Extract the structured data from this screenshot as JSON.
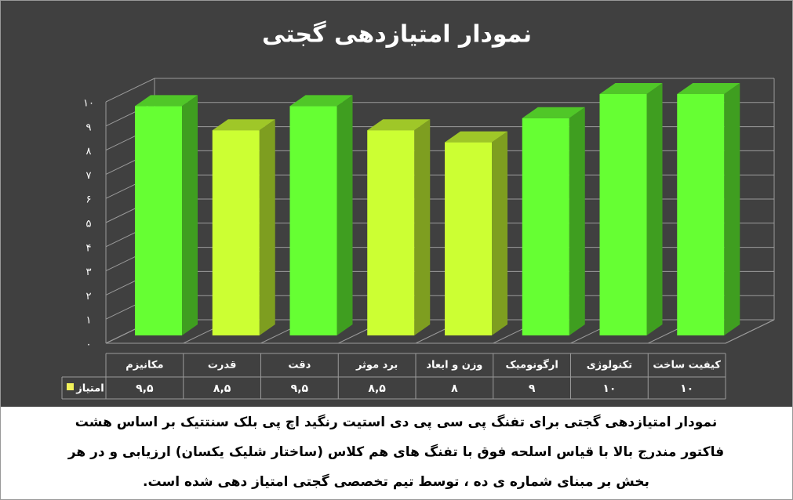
{
  "chart_data": {
    "type": "bar3d",
    "title": "نمودار امتیازدهی گجتی",
    "categories": [
      "مکانیزم",
      "قدرت",
      "دقت",
      "برد موثر",
      "وزن و ابعاد",
      "ارگونومیک",
      "تکنولوژی",
      "کیفیت ساخت"
    ],
    "series": [
      {
        "name": "امتیاز",
        "color": "#f2f25a",
        "values": [
          9.5,
          8.5,
          9.5,
          8.5,
          8,
          9,
          10,
          10
        ],
        "value_labels": [
          "۹,۵",
          "۸,۵",
          "۹,۵",
          "۸,۵",
          "۸",
          "۹",
          "۱۰",
          "۱۰"
        ],
        "bar_colors": [
          "#66ff33",
          "#ccff33",
          "#66ff33",
          "#ccff33",
          "#ccff33",
          "#66ff33",
          "#66ff33",
          "#66ff33"
        ]
      }
    ],
    "ylim": [
      0,
      10
    ],
    "yticks": [
      {
        "value": 0,
        "label": "۰"
      },
      {
        "value": 1,
        "label": "۱"
      },
      {
        "value": 2,
        "label": "۲"
      },
      {
        "value": 3,
        "label": "۳"
      },
      {
        "value": 4,
        "label": "۴"
      },
      {
        "value": 5,
        "label": "۵"
      },
      {
        "value": 6,
        "label": "۶"
      },
      {
        "value": 7,
        "label": "۷"
      },
      {
        "value": 8,
        "label": "۸"
      },
      {
        "value": 9,
        "label": "۹"
      },
      {
        "value": 10,
        "label": "۱۰"
      }
    ],
    "grid": true,
    "caption": [
      "نمودار امتیازدهی گجتی برای تفنگ پی سی پی  دی استیت رنگید اچ پی بلک سنتتیک بر اساس هشت",
      "فاکتور مندرج بالا با قیاس اسلحه فوق با تفنگ های هم کلاس (ساختار شلیک یکسان) ارزیابی و در هر",
      "بخش بر مبنای شماره ی ده ، توسط تیم تخصصی گجتی امتیاز دهی شده است."
    ]
  }
}
